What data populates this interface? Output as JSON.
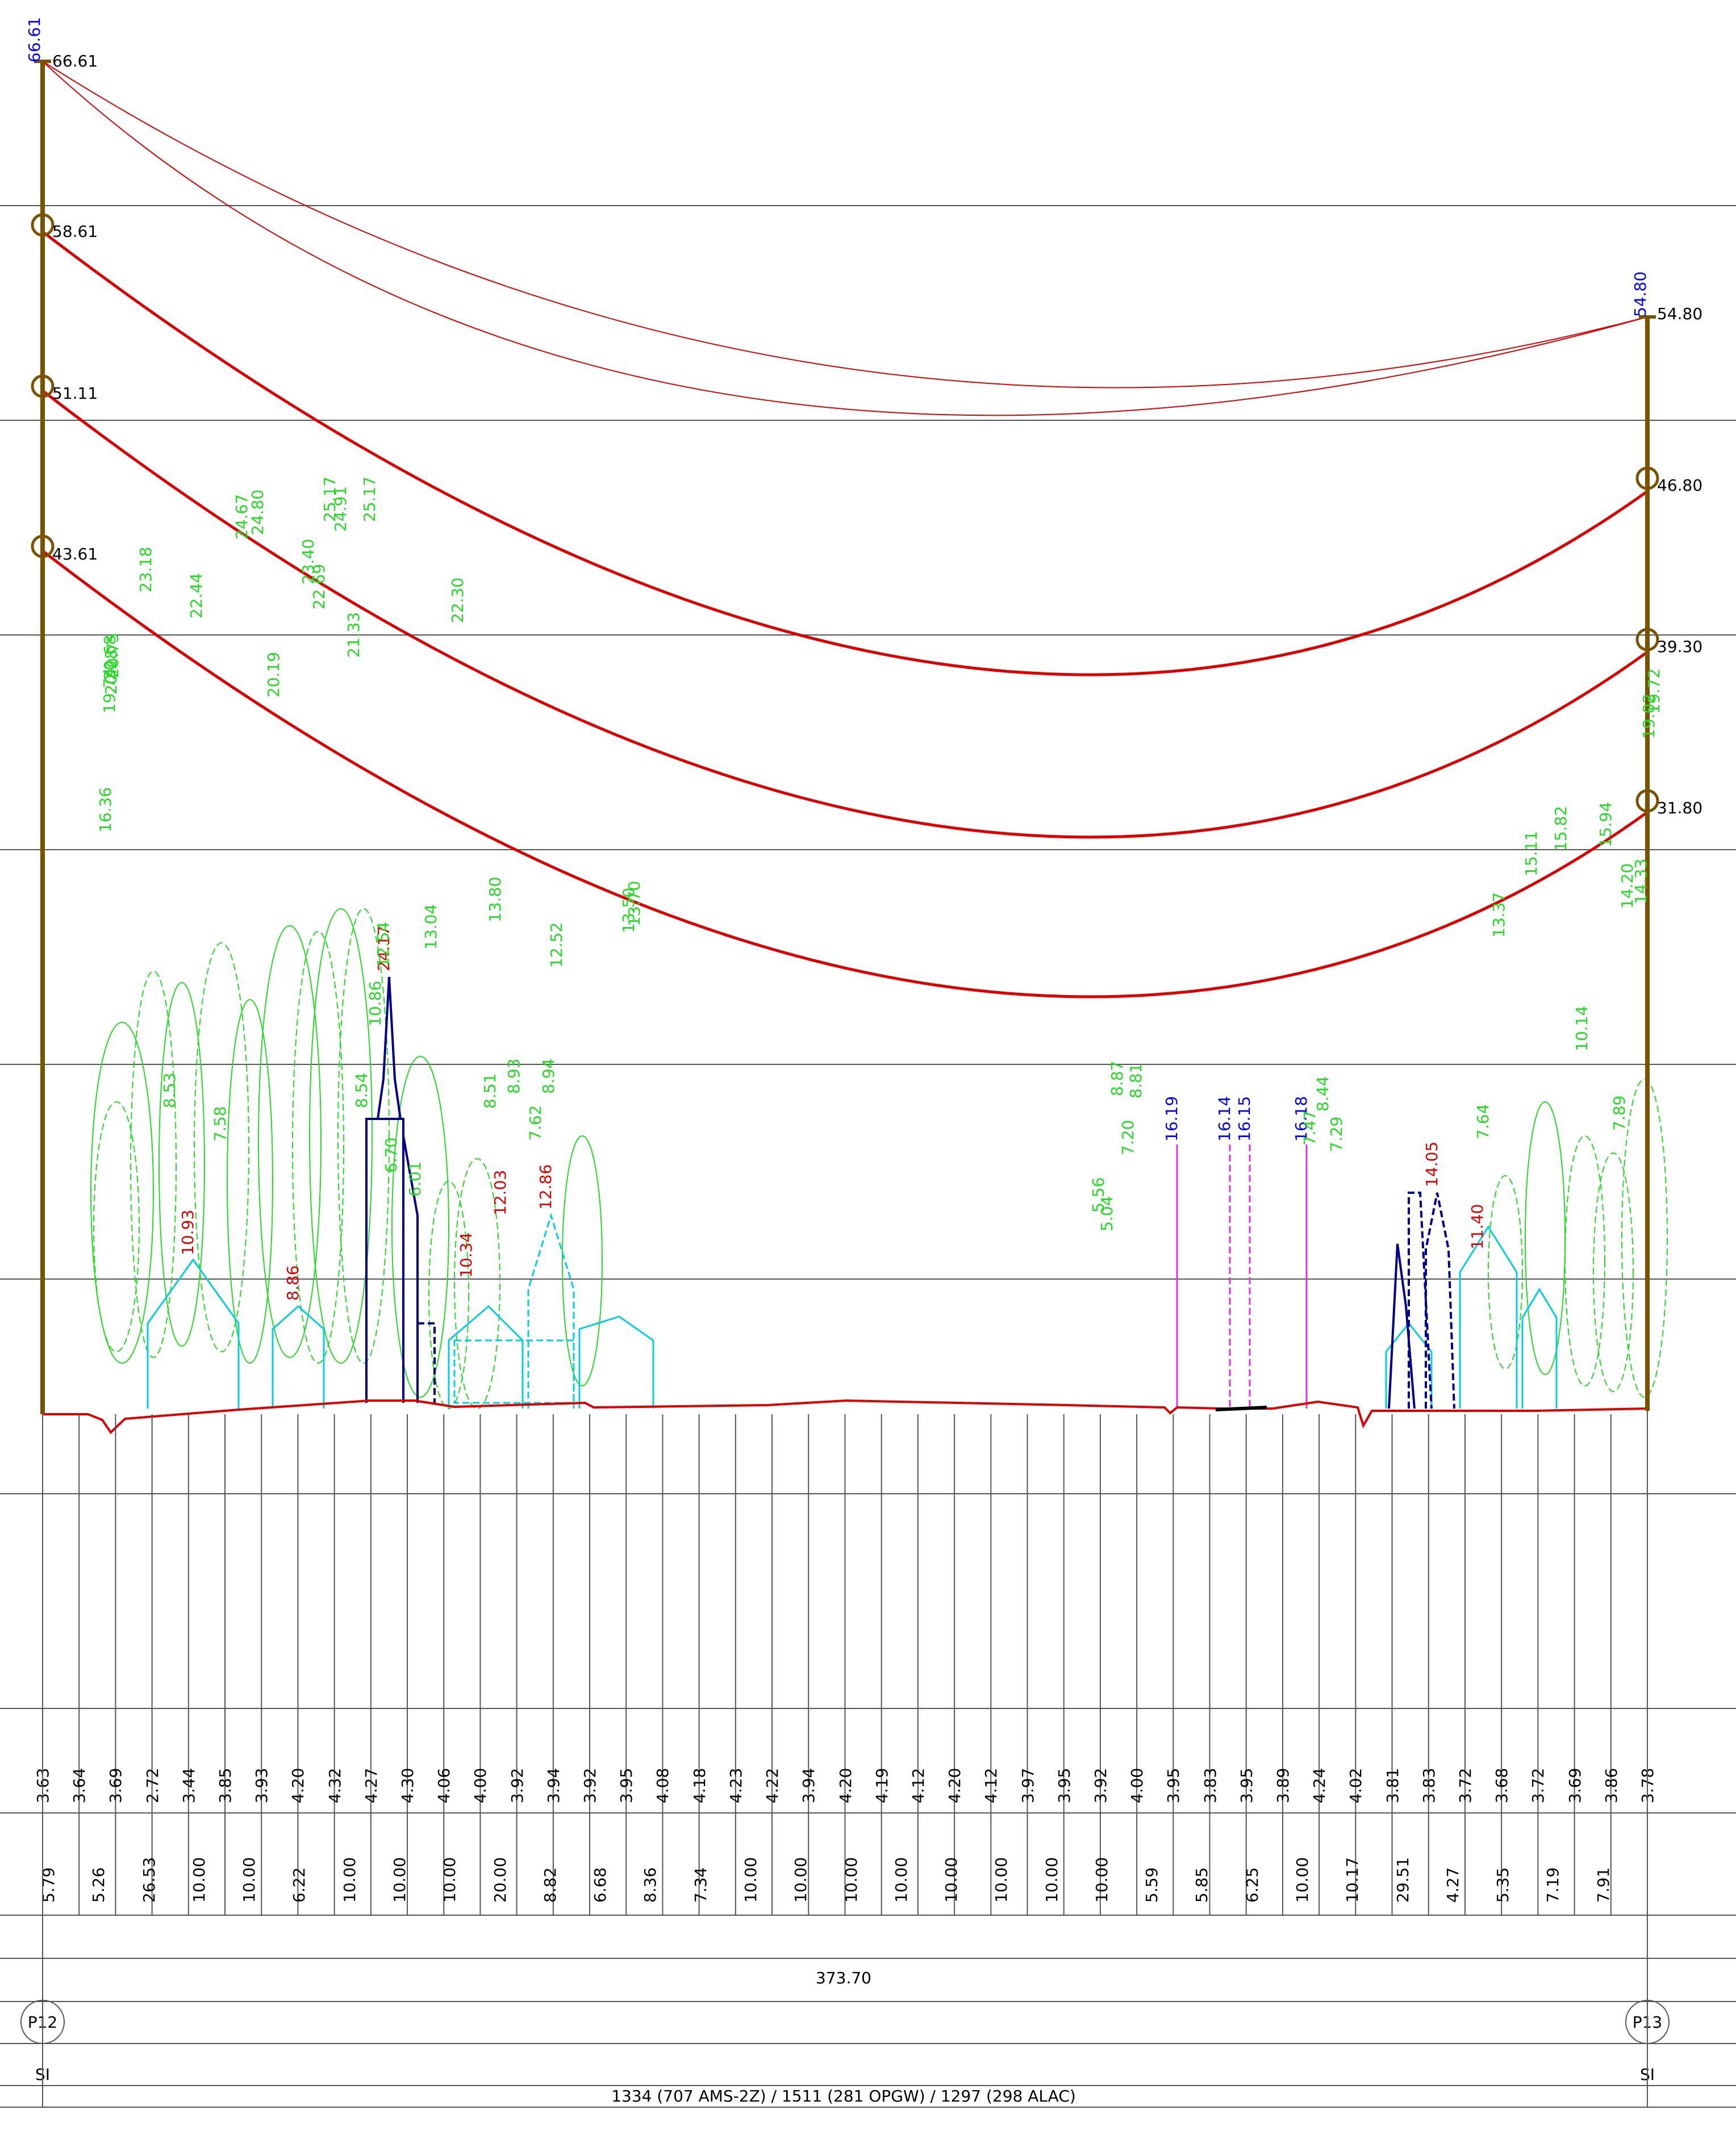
{
  "towers": {
    "left": {
      "name": "P12",
      "code": "SI",
      "top_height": "66.61",
      "top_height_label": "66.61",
      "attachments": [
        "58.61",
        "51.11",
        "43.61"
      ]
    },
    "right": {
      "name": "P13",
      "code": "SI",
      "top_height": "54.80",
      "top_height_label": "54.80",
      "attachments": [
        "46.80",
        "39.30",
        "31.80"
      ]
    }
  },
  "span_length": "373.70",
  "conductor_info": "1334 (707 AMS-2Z) / 1511 (281 OPGW) / 1297 (298 ALAC)",
  "clearances_red": [
    "10.93",
    "8.86",
    "24.17",
    "10.34",
    "12.03",
    "12.86",
    "14.05",
    "11.40"
  ],
  "clearances_blue": [
    "16.19",
    "16.14",
    "16.15",
    "16.18"
  ],
  "vegetation_heights": [
    {
      "x": 0.0,
      "v": "16.36"
    },
    {
      "x": 0.14,
      "v": "19.74"
    },
    {
      "x": 0.22,
      "v": "20.28"
    },
    {
      "x": 0.18,
      "v": "20.68"
    },
    {
      "x": 0.28,
      "v": "20.75"
    },
    {
      "x": 1.5,
      "v": "23.18"
    },
    {
      "x": 2.4,
      "v": "8.53"
    },
    {
      "x": 3.4,
      "v": "22.44"
    },
    {
      "x": 4.3,
      "v": "7.58"
    },
    {
      "x": 5.1,
      "v": "24.67"
    },
    {
      "x": 5.7,
      "v": "24.80"
    },
    {
      "x": 6.3,
      "v": "20.19"
    },
    {
      "x": 7.6,
      "v": "23.40"
    },
    {
      "x": 8.0,
      "v": "22.69"
    },
    {
      "x": 8.4,
      "v": "25.17"
    },
    {
      "x": 8.8,
      "v": "24.91"
    },
    {
      "x": 9.3,
      "v": "21.33"
    },
    {
      "x": 9.6,
      "v": "8.54"
    },
    {
      "x": 9.9,
      "v": "25.17"
    },
    {
      "x": 10.1,
      "v": "10.86"
    },
    {
      "x": 10.4,
      "v": "12.54"
    },
    {
      "x": 10.7,
      "v": "6.70"
    },
    {
      "x": 11.6,
      "v": "6.01"
    },
    {
      "x": 12.2,
      "v": "13.04"
    },
    {
      "x": 13.2,
      "v": "22.30"
    },
    {
      "x": 14.4,
      "v": "8.51"
    },
    {
      "x": 14.6,
      "v": "13.80"
    },
    {
      "x": 15.3,
      "v": "8.93"
    },
    {
      "x": 16.1,
      "v": "7.62"
    },
    {
      "x": 16.6,
      "v": "8.94"
    },
    {
      "x": 16.9,
      "v": "12.52"
    },
    {
      "x": 19.6,
      "v": "13.50"
    },
    {
      "x": 19.8,
      "v": "13.70"
    },
    {
      "x": 37.2,
      "v": "5.56"
    },
    {
      "x": 37.5,
      "v": "5.04"
    },
    {
      "x": 37.9,
      "v": "8.87"
    },
    {
      "x": 38.3,
      "v": "7.20"
    },
    {
      "x": 38.6,
      "v": "8.81"
    },
    {
      "x": 45.1,
      "v": "7.47"
    },
    {
      "x": 45.6,
      "v": "8.44"
    },
    {
      "x": 46.1,
      "v": "7.29"
    },
    {
      "x": 51.6,
      "v": "7.64"
    },
    {
      "x": 52.2,
      "v": "13.37"
    },
    {
      "x": 53.4,
      "v": "15.11"
    },
    {
      "x": 54.5,
      "v": "15.82"
    },
    {
      "x": 55.3,
      "v": "10.14"
    },
    {
      "x": 56.2,
      "v": "15.94"
    },
    {
      "x": 56.7,
      "v": "7.89"
    },
    {
      "x": 57.0,
      "v": "14.20"
    },
    {
      "x": 57.5,
      "v": "14.33"
    },
    {
      "x": 57.8,
      "v": "19.02"
    },
    {
      "x": 58.0,
      "v": "19.72"
    }
  ],
  "ground_elevations": [
    "3.63",
    "3.64",
    "3.69",
    "2.72",
    "3.44",
    "3.85",
    "3.93",
    "4.20",
    "4.32",
    "4.27",
    "4.30",
    "4.06",
    "4.00",
    "3.92",
    "3.94",
    "3.92",
    "3.95",
    "4.08",
    "4.18",
    "4.23",
    "4.22",
    "3.94",
    "4.20",
    "4.19",
    "4.12",
    "4.20",
    "4.12",
    "3.97",
    "3.95",
    "3.92",
    "4.00",
    "3.95",
    "3.83",
    "3.95",
    "3.89",
    "4.24",
    "4.02",
    "3.81",
    "3.83",
    "3.72",
    "3.68",
    "3.72",
    "3.69",
    "3.86",
    "3.78"
  ],
  "segment_distances": [
    "5.79",
    "5.26",
    "26.53",
    "10.00",
    "10.00",
    "6.22",
    "10.00",
    "10.00",
    "10.00",
    "20.00",
    "8.82",
    "6.68",
    "8.36",
    "7.34",
    "10.00",
    "10.00",
    "10.00",
    "10.00",
    "10.00",
    "10.00",
    "10.00",
    "10.00",
    "5.59",
    "5.85",
    "6.25",
    "10.00",
    "10.17",
    "29.51",
    "4.27",
    "5.35",
    "7.19",
    "7.91"
  ],
  "colors": {
    "pole": "#7a5200",
    "conductor": "#e00000",
    "vegetation": "#22dd22",
    "building": "#00d0e0",
    "structure": "#00008b",
    "crossing": "#dd33dd",
    "height_label": "#0000ff",
    "grid": "#555555"
  }
}
